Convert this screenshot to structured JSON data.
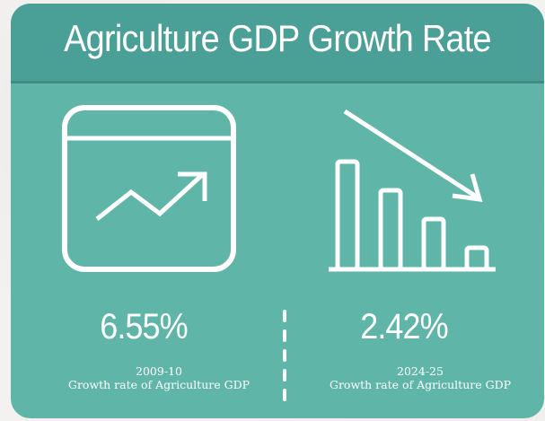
{
  "header": {
    "title": "Agriculture GDP Growth Rate"
  },
  "left_stat": {
    "icon": "trend-up-window-icon",
    "value": "6.55%",
    "year": "2009-10",
    "label": "Growth rate of Agriculture GDP"
  },
  "right_stat": {
    "icon": "declining-bars-icon",
    "value": "2.42%",
    "year": "2024-25",
    "label": "Growth rate of Agriculture GDP"
  },
  "colors": {
    "card": "#5fb6a8",
    "header": "#4aa096",
    "text": "#ffffff"
  }
}
